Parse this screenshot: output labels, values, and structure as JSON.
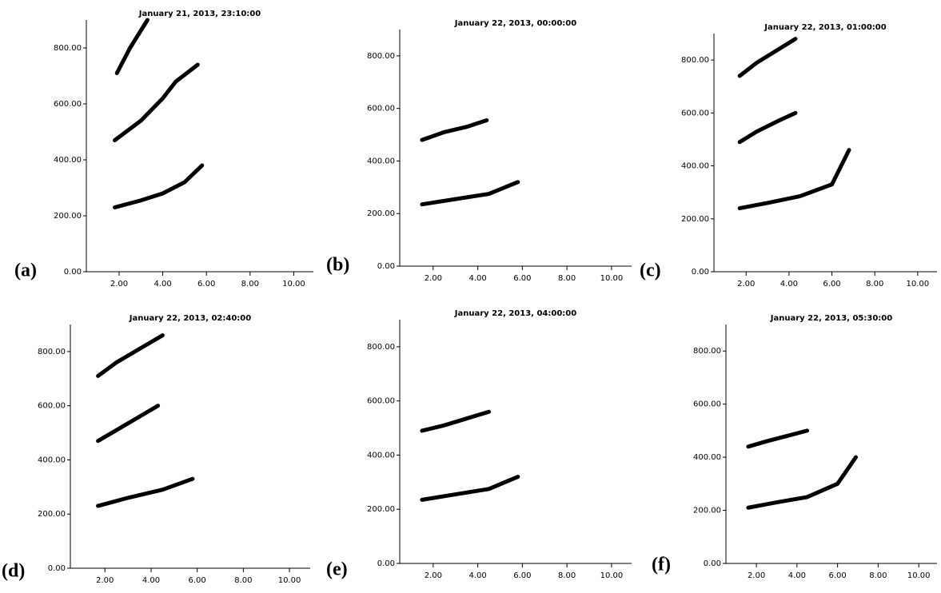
{
  "chart_data": [
    {
      "type": "line",
      "title": "January 21, 2013, 23:10:00",
      "label": "(a)",
      "xlim": [
        0.5,
        10.9
      ],
      "ylim": [
        0,
        900
      ],
      "xticks": [
        {
          "value": 2,
          "label": "2.00"
        },
        {
          "value": 4,
          "label": "4.00"
        },
        {
          "value": 6,
          "label": "6.00"
        },
        {
          "value": 8,
          "label": "8.00"
        },
        {
          "value": 10,
          "label": "10.00"
        }
      ],
      "yticks": [
        {
          "value": 0,
          "label": "0.00"
        },
        {
          "value": 200,
          "label": "200.00"
        },
        {
          "value": 400,
          "label": "400.00"
        },
        {
          "value": 600,
          "label": "600.00"
        },
        {
          "value": 800,
          "label": "800.00"
        }
      ],
      "series": [
        {
          "color": "#000000",
          "x": [
            1.8,
            3,
            4,
            5,
            5.8
          ],
          "values": [
            230,
            255,
            280,
            320,
            380
          ]
        },
        {
          "color": "#000000",
          "x": [
            1.8,
            3,
            4,
            4.6,
            5.6
          ],
          "values": [
            470,
            540,
            620,
            680,
            740
          ]
        },
        {
          "color": "#000000",
          "x": [
            1.9,
            2.5,
            3.3
          ],
          "values": [
            710,
            800,
            900
          ]
        }
      ]
    },
    {
      "type": "line",
      "title": "January 22, 2013, 00:00:00",
      "label": "(b)",
      "xlim": [
        0.5,
        10.9
      ],
      "ylim": [
        0,
        900
      ],
      "xticks": [
        {
          "value": 2,
          "label": "2.00"
        },
        {
          "value": 4,
          "label": "4.00"
        },
        {
          "value": 6,
          "label": "6.00"
        },
        {
          "value": 8,
          "label": "8.00"
        },
        {
          "value": 10,
          "label": "10.00"
        }
      ],
      "yticks": [
        {
          "value": 0,
          "label": "0.00"
        },
        {
          "value": 200,
          "label": "200.00"
        },
        {
          "value": 400,
          "label": "400.00"
        },
        {
          "value": 600,
          "label": "600.00"
        },
        {
          "value": 800,
          "label": "800.00"
        }
      ],
      "series": [
        {
          "color": "#000000",
          "x": [
            1.5,
            3,
            4.5,
            5.8
          ],
          "values": [
            235,
            255,
            275,
            320
          ]
        },
        {
          "color": "#000000",
          "x": [
            1.5,
            2.5,
            3.5,
            4.4
          ],
          "values": [
            480,
            510,
            530,
            555
          ]
        }
      ]
    },
    {
      "type": "line",
      "title": "January 22, 2013, 01:00:00",
      "label": "(c)",
      "xlim": [
        0.5,
        10.9
      ],
      "ylim": [
        0,
        900
      ],
      "xticks": [
        {
          "value": 2,
          "label": "2.00"
        },
        {
          "value": 4,
          "label": "4.00"
        },
        {
          "value": 6,
          "label": "6.00"
        },
        {
          "value": 8,
          "label": "8.00"
        },
        {
          "value": 10,
          "label": "10.00"
        }
      ],
      "yticks": [
        {
          "value": 0,
          "label": "0.00"
        },
        {
          "value": 200,
          "label": "200.00"
        },
        {
          "value": 400,
          "label": "400.00"
        },
        {
          "value": 600,
          "label": "600.00"
        },
        {
          "value": 800,
          "label": "800.00"
        }
      ],
      "series": [
        {
          "color": "#000000",
          "x": [
            1.7,
            3,
            4.5,
            6,
            6.8
          ],
          "values": [
            240,
            260,
            285,
            330,
            460
          ]
        },
        {
          "color": "#000000",
          "x": [
            1.7,
            2.5,
            3.5,
            4.3
          ],
          "values": [
            490,
            530,
            570,
            600
          ]
        },
        {
          "color": "#000000",
          "x": [
            1.7,
            2.5,
            3.5,
            4.3
          ],
          "values": [
            740,
            790,
            840,
            880
          ]
        }
      ]
    },
    {
      "type": "line",
      "title": "January 22, 2013, 02:40:00",
      "label": "(d)",
      "xlim": [
        0.5,
        10.9
      ],
      "ylim": [
        0,
        900
      ],
      "xticks": [
        {
          "value": 2,
          "label": "2.00"
        },
        {
          "value": 4,
          "label": "4.00"
        },
        {
          "value": 6,
          "label": "6.00"
        },
        {
          "value": 8,
          "label": "8.00"
        },
        {
          "value": 10,
          "label": "10.00"
        }
      ],
      "yticks": [
        {
          "value": 0,
          "label": "0.00"
        },
        {
          "value": 200,
          "label": "200.00"
        },
        {
          "value": 400,
          "label": "400.00"
        },
        {
          "value": 600,
          "label": "600.00"
        },
        {
          "value": 800,
          "label": "800.00"
        }
      ],
      "series": [
        {
          "color": "#000000",
          "x": [
            1.7,
            3,
            4.5,
            5.8
          ],
          "values": [
            230,
            260,
            290,
            330
          ]
        },
        {
          "color": "#000000",
          "x": [
            1.7,
            2.5,
            3.5,
            4.3
          ],
          "values": [
            470,
            510,
            560,
            600
          ]
        },
        {
          "color": "#000000",
          "x": [
            1.7,
            2.5,
            3.5,
            4.5
          ],
          "values": [
            710,
            760,
            810,
            860
          ]
        }
      ]
    },
    {
      "type": "line",
      "title": "January 22, 2013, 04:00:00",
      "label": "(e)",
      "xlim": [
        0.5,
        10.9
      ],
      "ylim": [
        0,
        900
      ],
      "xticks": [
        {
          "value": 2,
          "label": "2.00"
        },
        {
          "value": 4,
          "label": "4.00"
        },
        {
          "value": 6,
          "label": "6.00"
        },
        {
          "value": 8,
          "label": "8.00"
        },
        {
          "value": 10,
          "label": "10.00"
        }
      ],
      "yticks": [
        {
          "value": 0,
          "label": "0.00"
        },
        {
          "value": 200,
          "label": "200.00"
        },
        {
          "value": 400,
          "label": "400.00"
        },
        {
          "value": 600,
          "label": "600.00"
        },
        {
          "value": 800,
          "label": "800.00"
        }
      ],
      "series": [
        {
          "color": "#000000",
          "x": [
            1.5,
            3,
            4.5,
            5.8
          ],
          "values": [
            235,
            255,
            275,
            320
          ]
        },
        {
          "color": "#000000",
          "x": [
            1.5,
            2.5,
            3.5,
            4.5
          ],
          "values": [
            490,
            510,
            535,
            560
          ]
        }
      ]
    },
    {
      "type": "line",
      "title": "January 22, 2013, 05:30:00",
      "label": "(f)",
      "xlim": [
        0.5,
        10.9
      ],
      "ylim": [
        0,
        900
      ],
      "xticks": [
        {
          "value": 2,
          "label": "2.00"
        },
        {
          "value": 4,
          "label": "4.00"
        },
        {
          "value": 6,
          "label": "6.00"
        },
        {
          "value": 8,
          "label": "8.00"
        },
        {
          "value": 10,
          "label": "10.00"
        }
      ],
      "yticks": [
        {
          "value": 0,
          "label": "0.00"
        },
        {
          "value": 200,
          "label": "200.00"
        },
        {
          "value": 400,
          "label": "400.00"
        },
        {
          "value": 600,
          "label": "600.00"
        },
        {
          "value": 800,
          "label": "800.00"
        }
      ],
      "series": [
        {
          "color": "#000000",
          "x": [
            1.6,
            3,
            4.5,
            6,
            6.9
          ],
          "values": [
            210,
            230,
            250,
            300,
            400
          ]
        },
        {
          "color": "#000000",
          "x": [
            1.6,
            2.5,
            3.5,
            4.5
          ],
          "values": [
            440,
            460,
            480,
            500
          ]
        }
      ]
    }
  ]
}
